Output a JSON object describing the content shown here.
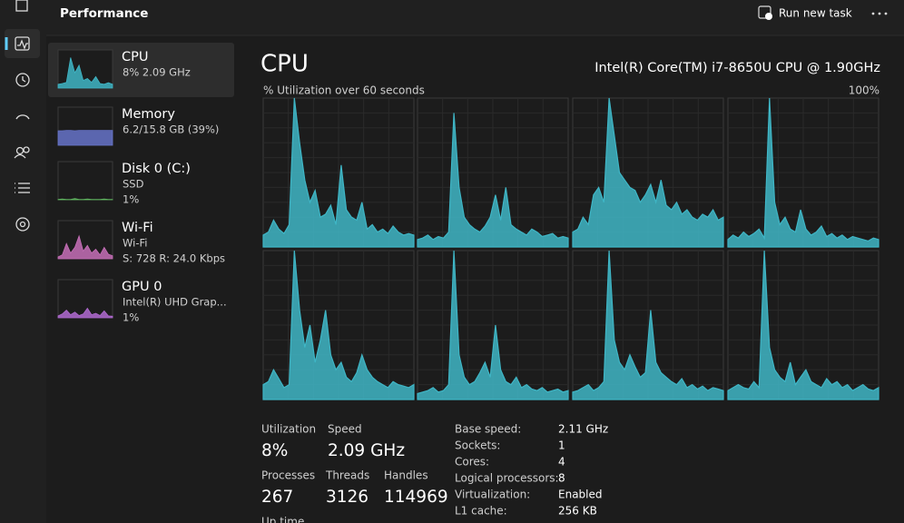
{
  "header": {
    "title": "Performance",
    "run_new_task": "Run new task"
  },
  "sidebar": [
    {
      "name": "CPU",
      "lines": [
        "8%  2.09 GHz"
      ],
      "color": "#3fb6c6",
      "graph": [
        10,
        12,
        15,
        80,
        40,
        60,
        20,
        25,
        15,
        30,
        12,
        10,
        14,
        10
      ]
    },
    {
      "name": "Memory",
      "lines": [
        "6.2/15.8 GB (39%)"
      ],
      "color": "#6673c9",
      "graph": [
        38,
        38,
        39,
        39,
        38,
        39,
        39,
        39,
        39,
        39,
        39,
        39,
        39,
        39
      ]
    },
    {
      "name": "Disk 0 (C:)",
      "lines": [
        "SSD",
        "1%"
      ],
      "color": "#5fb55f",
      "graph": [
        1,
        2,
        1,
        1,
        3,
        1,
        1,
        2,
        1,
        1,
        1,
        2,
        1,
        1
      ]
    },
    {
      "name": "Wi-Fi",
      "lines": [
        "Wi-Fi",
        "S: 728  R: 24.0 Kbps"
      ],
      "color": "#c66fb7",
      "graph": [
        5,
        10,
        40,
        15,
        30,
        60,
        20,
        35,
        15,
        25,
        10,
        30,
        12,
        8
      ]
    },
    {
      "name": "GPU 0",
      "lines": [
        "Intel(R) UHD Grap...",
        "1%"
      ],
      "color": "#b06ad0",
      "graph": [
        5,
        10,
        20,
        8,
        15,
        6,
        10,
        25,
        8,
        12,
        6,
        18,
        5,
        4
      ]
    }
  ],
  "main": {
    "title": "CPU",
    "model": "Intel(R) Core(TM) i7-8650U CPU @ 1.90GHz",
    "graph_label": "% Utilization over 60 seconds",
    "graph_max": "100%",
    "color": "#3fb6c6",
    "cores": [
      {
        "values": [
          8,
          10,
          18,
          12,
          9,
          15,
          100,
          70,
          45,
          30,
          38,
          20,
          22,
          28,
          15,
          55,
          25,
          20,
          18,
          30,
          12,
          15,
          10,
          12,
          9,
          14,
          10,
          8,
          9,
          8
        ]
      },
      {
        "values": [
          5,
          6,
          8,
          5,
          7,
          6,
          10,
          90,
          40,
          20,
          15,
          12,
          10,
          14,
          20,
          35,
          18,
          40,
          15,
          12,
          10,
          8,
          12,
          10,
          7,
          8,
          9,
          6,
          7,
          6
        ]
      },
      {
        "values": [
          10,
          12,
          20,
          15,
          35,
          40,
          30,
          100,
          75,
          50,
          45,
          40,
          38,
          30,
          35,
          42,
          30,
          45,
          28,
          25,
          30,
          22,
          25,
          20,
          18,
          22,
          20,
          25,
          18,
          20
        ]
      },
      {
        "values": [
          5,
          8,
          6,
          10,
          7,
          9,
          12,
          6,
          100,
          30,
          15,
          20,
          12,
          10,
          25,
          12,
          8,
          10,
          14,
          7,
          9,
          6,
          8,
          5,
          7,
          6,
          5,
          4,
          6,
          5
        ]
      },
      {
        "values": [
          10,
          12,
          20,
          14,
          8,
          10,
          100,
          60,
          35,
          50,
          25,
          40,
          60,
          30,
          20,
          25,
          15,
          12,
          18,
          30,
          20,
          15,
          12,
          10,
          8,
          12,
          10,
          9,
          8,
          10
        ]
      },
      {
        "values": [
          4,
          5,
          6,
          8,
          5,
          6,
          10,
          100,
          30,
          15,
          10,
          12,
          18,
          25,
          15,
          50,
          20,
          12,
          10,
          15,
          8,
          10,
          7,
          6,
          8,
          5,
          6,
          7,
          5,
          6
        ]
      },
      {
        "values": [
          5,
          6,
          8,
          10,
          6,
          8,
          12,
          100,
          40,
          25,
          20,
          30,
          22,
          15,
          18,
          60,
          25,
          18,
          15,
          12,
          10,
          14,
          8,
          10,
          7,
          9,
          6,
          8,
          7,
          6
        ]
      },
      {
        "values": [
          6,
          8,
          10,
          8,
          7,
          12,
          8,
          100,
          35,
          20,
          15,
          12,
          25,
          10,
          15,
          20,
          12,
          10,
          8,
          14,
          10,
          12,
          8,
          10,
          6,
          8,
          10,
          7,
          6,
          8
        ]
      }
    ]
  },
  "stats": [
    {
      "label": "Utilization",
      "value": "8%"
    },
    {
      "label": "Speed",
      "value": "2.09 GHz"
    },
    {
      "label": "Processes",
      "value": "267"
    },
    {
      "label": "Threads",
      "value": "3126"
    },
    {
      "label": "Handles",
      "value": "114969"
    },
    {
      "label": "Up time",
      "value": ""
    }
  ],
  "details": [
    {
      "label": "Base speed:",
      "value": "2.11 GHz"
    },
    {
      "label": "Sockets:",
      "value": "1"
    },
    {
      "label": "Cores:",
      "value": "4"
    },
    {
      "label": "Logical processors:",
      "value": "8"
    },
    {
      "label": "Virtualization:",
      "value": "Enabled"
    },
    {
      "label": "L1 cache:",
      "value": "256 KB"
    }
  ]
}
